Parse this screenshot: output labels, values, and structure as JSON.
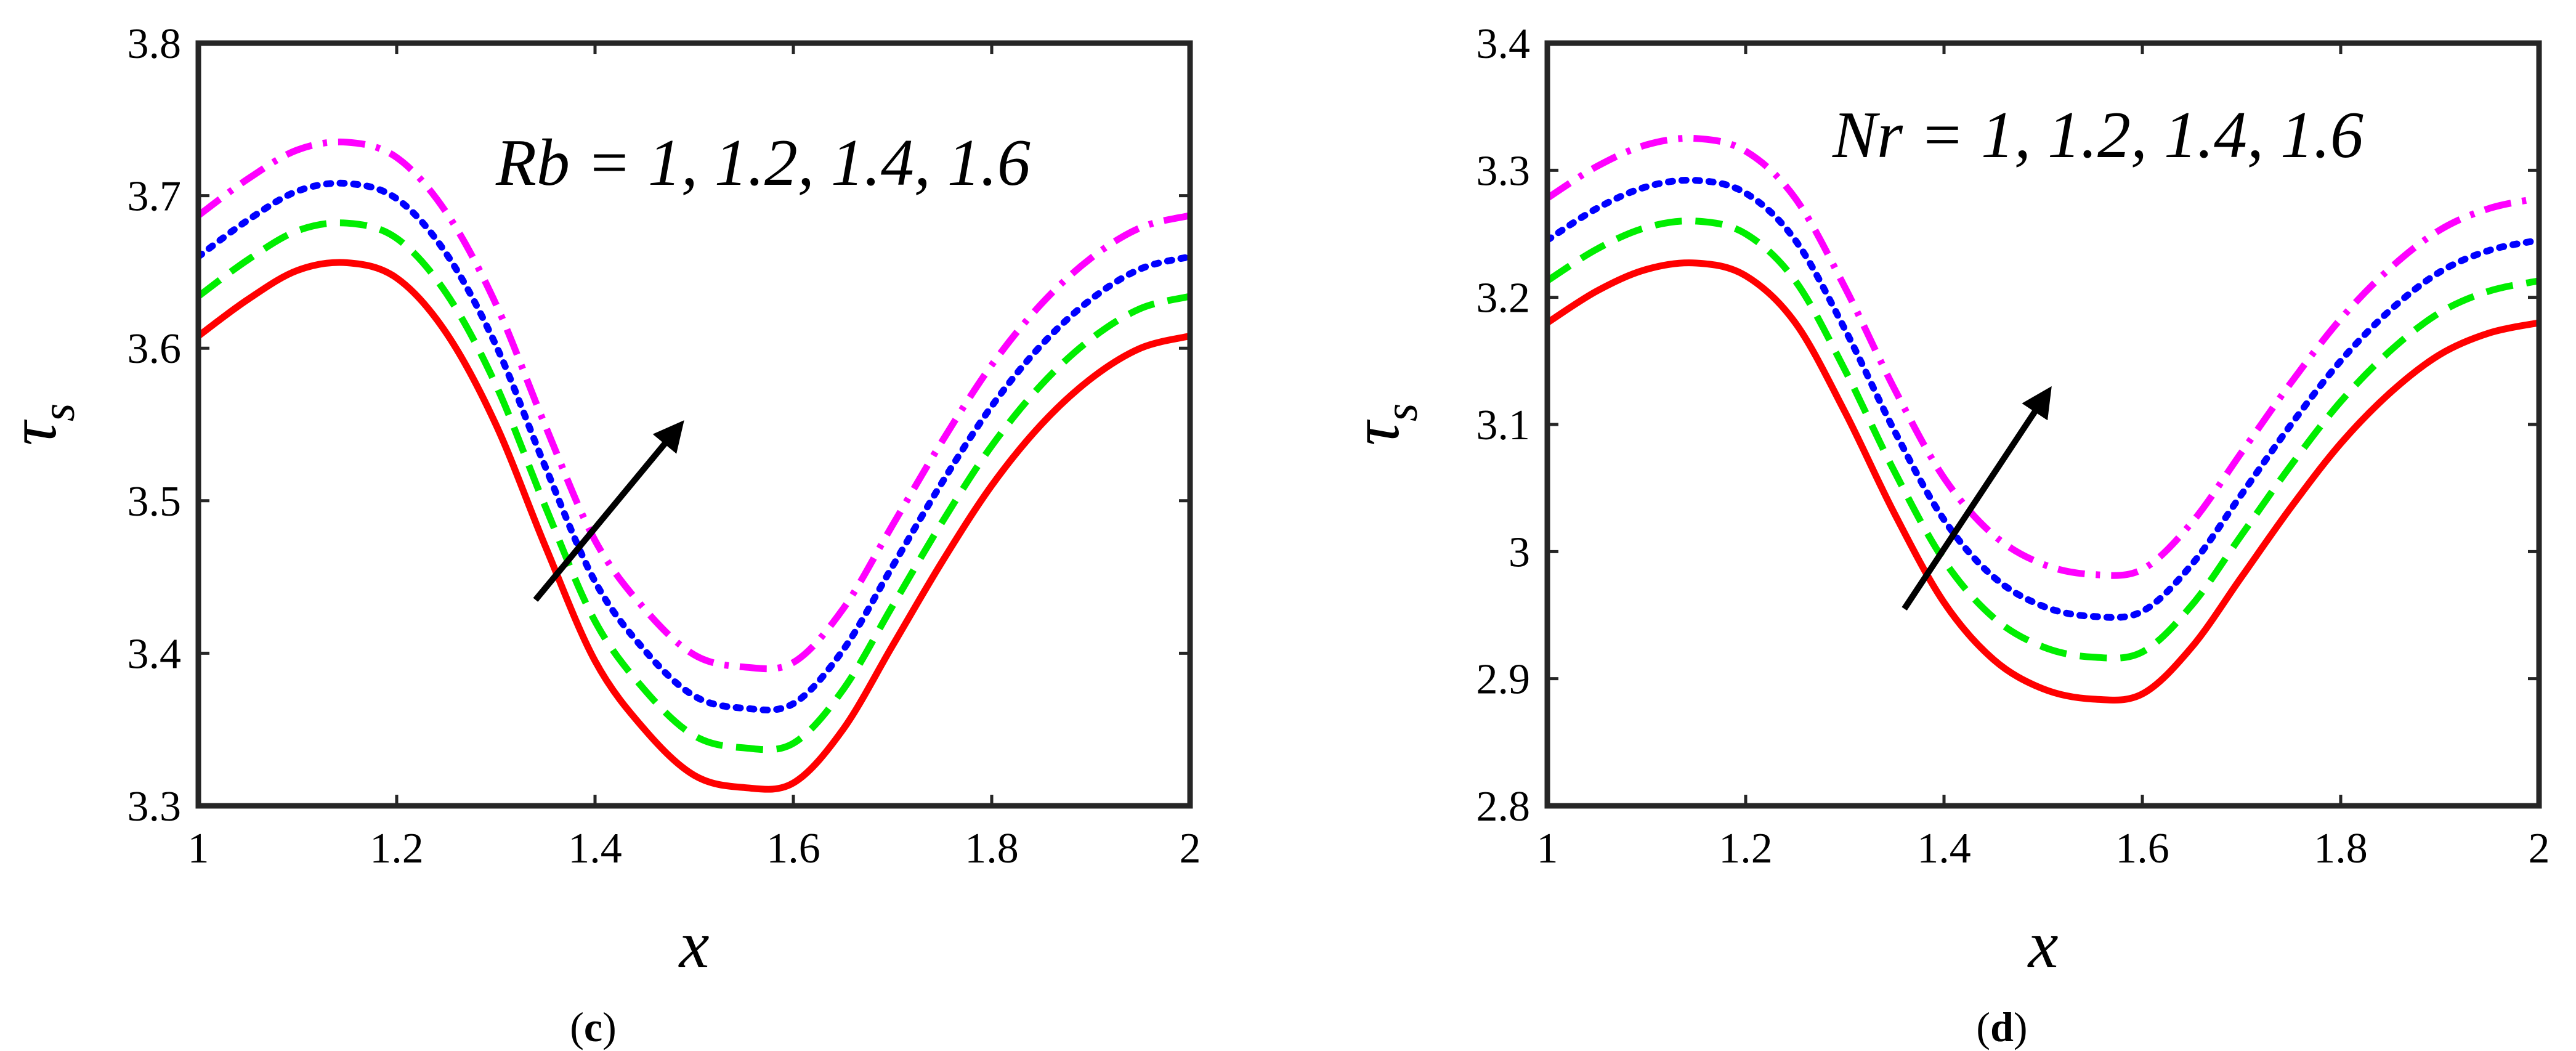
{
  "chart_data": [
    {
      "type": "line",
      "panel_caption": "(c)",
      "caption_letter": "c",
      "annotation": "Rb = 1, 1.2, 1.4, 1.6",
      "xlabel": "x",
      "ylabel_base": "τ",
      "ylabel_sub": "s",
      "xlim": [
        1,
        2
      ],
      "ylim": [
        3.3,
        3.8
      ],
      "xticks": [
        1,
        1.2,
        1.4,
        1.6,
        1.8,
        2
      ],
      "xtick_labels": [
        "1",
        "1.2",
        "1.4",
        "1.6",
        "1.8",
        "2"
      ],
      "yticks": [
        3.3,
        3.4,
        3.5,
        3.6,
        3.7,
        3.8
      ],
      "ytick_labels": [
        "3.3",
        "3.4",
        "3.5",
        "3.6",
        "3.7",
        "3.8"
      ],
      "x": [
        1.0,
        1.05,
        1.1,
        1.15,
        1.2,
        1.25,
        1.3,
        1.35,
        1.4,
        1.45,
        1.5,
        1.55,
        1.6,
        1.65,
        1.7,
        1.75,
        1.8,
        1.85,
        1.9,
        1.95,
        2.0
      ],
      "arrow": {
        "from": [
          1.34,
          3.435
        ],
        "to": [
          1.48,
          3.545
        ]
      },
      "series": [
        {
          "name": "Rb = 1",
          "color": "#ff0000",
          "dash": "solid",
          "values": [
            3.608,
            3.632,
            3.651,
            3.656,
            3.646,
            3.61,
            3.55,
            3.47,
            3.395,
            3.35,
            3.32,
            3.312,
            3.315,
            3.35,
            3.405,
            3.46,
            3.51,
            3.55,
            3.58,
            3.6,
            3.608
          ]
        },
        {
          "name": "Rb = 1.2",
          "color": "#00ee00",
          "dash": "dashed",
          "values": [
            3.634,
            3.658,
            3.677,
            3.682,
            3.672,
            3.636,
            3.576,
            3.496,
            3.421,
            3.376,
            3.346,
            3.338,
            3.341,
            3.376,
            3.431,
            3.486,
            3.536,
            3.576,
            3.606,
            3.626,
            3.634
          ]
        },
        {
          "name": "Rb = 1.4",
          "color": "#0000ff",
          "dash": "dotted",
          "values": [
            3.66,
            3.684,
            3.703,
            3.708,
            3.698,
            3.662,
            3.602,
            3.522,
            3.447,
            3.402,
            3.372,
            3.364,
            3.367,
            3.402,
            3.457,
            3.512,
            3.562,
            3.602,
            3.632,
            3.652,
            3.66
          ]
        },
        {
          "name": "Rb = 1.6",
          "color": "#ff00ff",
          "dash": "dashdot",
          "values": [
            3.687,
            3.711,
            3.73,
            3.735,
            3.725,
            3.689,
            3.629,
            3.549,
            3.474,
            3.429,
            3.399,
            3.391,
            3.394,
            3.429,
            3.484,
            3.539,
            3.589,
            3.629,
            3.659,
            3.679,
            3.687
          ]
        }
      ]
    },
    {
      "type": "line",
      "panel_caption": "(d)",
      "caption_letter": "d",
      "annotation": "Nr = 1, 1.2, 1.4, 1.6",
      "xlabel": "x",
      "ylabel_base": "τ",
      "ylabel_sub": "s",
      "xlim": [
        1,
        2
      ],
      "ylim": [
        2.8,
        3.4
      ],
      "xticks": [
        1,
        1.2,
        1.4,
        1.6,
        1.8,
        2
      ],
      "xtick_labels": [
        "1",
        "1.2",
        "1.4",
        "1.6",
        "1.8",
        "2"
      ],
      "yticks": [
        2.8,
        2.9,
        3.0,
        3.1,
        3.2,
        3.3,
        3.4
      ],
      "ytick_labels": [
        "2.8",
        "2.9",
        "3",
        "3.1",
        "3.2",
        "3.3",
        "3.4"
      ],
      "x": [
        1.0,
        1.05,
        1.1,
        1.15,
        1.2,
        1.25,
        1.3,
        1.35,
        1.4,
        1.45,
        1.5,
        1.55,
        1.6,
        1.65,
        1.7,
        1.75,
        1.8,
        1.85,
        1.9,
        1.95,
        2.0
      ],
      "arrow": {
        "from": [
          1.36,
          2.955
        ],
        "to": [
          1.5,
          3.12
        ]
      },
      "series": [
        {
          "name": "Nr = 1",
          "color": "#ff0000",
          "dash": "solid",
          "values": [
            3.18,
            3.205,
            3.222,
            3.227,
            3.217,
            3.18,
            3.11,
            3.03,
            2.96,
            2.915,
            2.892,
            2.884,
            2.888,
            2.925,
            2.98,
            3.035,
            3.085,
            3.125,
            3.155,
            3.172,
            3.18
          ]
        },
        {
          "name": "Nr = 1.2",
          "color": "#00ee00",
          "dash": "dashed",
          "values": [
            3.213,
            3.238,
            3.255,
            3.26,
            3.25,
            3.213,
            3.143,
            3.063,
            2.993,
            2.948,
            2.925,
            2.917,
            2.921,
            2.958,
            3.013,
            3.068,
            3.118,
            3.158,
            3.188,
            3.205,
            3.213
          ]
        },
        {
          "name": "Nr = 1.4",
          "color": "#0000ff",
          "dash": "dotted",
          "values": [
            3.245,
            3.27,
            3.287,
            3.292,
            3.282,
            3.245,
            3.175,
            3.095,
            3.025,
            2.98,
            2.957,
            2.949,
            2.953,
            2.99,
            3.045,
            3.1,
            3.15,
            3.19,
            3.22,
            3.237,
            3.245
          ]
        },
        {
          "name": "Nr = 1.6",
          "color": "#ff00ff",
          "dash": "dashdot",
          "values": [
            3.278,
            3.303,
            3.32,
            3.325,
            3.315,
            3.278,
            3.208,
            3.128,
            3.058,
            3.013,
            2.99,
            2.982,
            2.986,
            3.023,
            3.078,
            3.133,
            3.183,
            3.223,
            3.253,
            3.27,
            3.278
          ]
        }
      ]
    }
  ]
}
